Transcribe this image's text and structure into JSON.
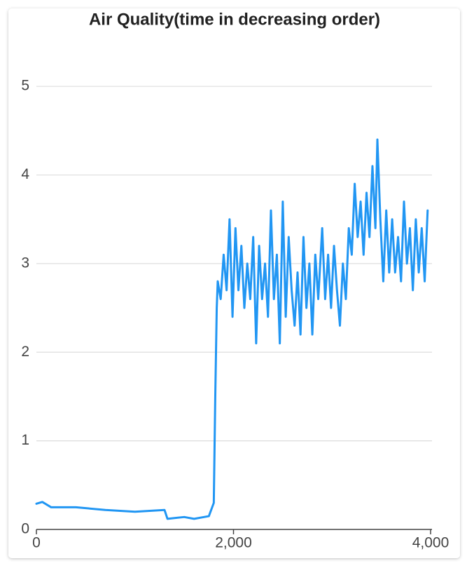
{
  "chart_data": {
    "type": "line",
    "title": "Air Quality(time in decreasing order)",
    "color": "#2196f3",
    "grid": true,
    "xlim": [
      0,
      4000
    ],
    "xticks": [
      0,
      {
        "value": 2000,
        "label": "2,000"
      },
      {
        "value": 4000,
        "label": "4,000"
      }
    ],
    "ylim": [
      0,
      5.5
    ],
    "yticks": [
      0,
      1,
      2,
      3,
      4,
      5
    ],
    "x": [
      0,
      60,
      150,
      400,
      700,
      1000,
      1300,
      1330,
      1500,
      1600,
      1750,
      1800,
      1815,
      1830,
      1840,
      1870,
      1900,
      1930,
      1960,
      1990,
      2020,
      2050,
      2080,
      2110,
      2140,
      2170,
      2200,
      2230,
      2260,
      2290,
      2320,
      2350,
      2380,
      2410,
      2440,
      2470,
      2500,
      2530,
      2560,
      2590,
      2620,
      2650,
      2680,
      2710,
      2740,
      2770,
      2800,
      2830,
      2860,
      2900,
      2930,
      2960,
      2990,
      3020,
      3050,
      3080,
      3110,
      3140,
      3170,
      3200,
      3230,
      3260,
      3290,
      3320,
      3350,
      3380,
      3410,
      3440,
      3460,
      3490,
      3520,
      3550,
      3580,
      3610,
      3640,
      3670,
      3700,
      3730,
      3760,
      3790,
      3820,
      3850,
      3880,
      3910,
      3940,
      3970
    ],
    "values": [
      0.29,
      0.31,
      0.25,
      0.25,
      0.22,
      0.2,
      0.22,
      0.12,
      0.14,
      0.12,
      0.15,
      0.3,
      1.5,
      2.5,
      2.8,
      2.6,
      3.1,
      2.7,
      3.5,
      2.4,
      3.4,
      2.7,
      3.2,
      2.5,
      3.0,
      2.6,
      3.3,
      2.1,
      3.2,
      2.6,
      3.0,
      2.4,
      3.6,
      2.6,
      3.1,
      2.1,
      3.7,
      2.4,
      3.3,
      2.7,
      2.3,
      2.9,
      2.2,
      3.3,
      2.5,
      3.0,
      2.2,
      3.1,
      2.6,
      3.4,
      2.6,
      3.1,
      2.5,
      3.2,
      2.7,
      2.3,
      3.0,
      2.6,
      3.4,
      3.1,
      3.9,
      3.3,
      3.7,
      3.1,
      3.8,
      3.3,
      4.1,
      3.4,
      4.4,
      3.5,
      2.8,
      3.6,
      2.9,
      3.5,
      2.9,
      3.3,
      2.8,
      3.7,
      3.0,
      3.4,
      2.7,
      3.5,
      2.9,
      3.4,
      2.8,
      3.6
    ]
  }
}
